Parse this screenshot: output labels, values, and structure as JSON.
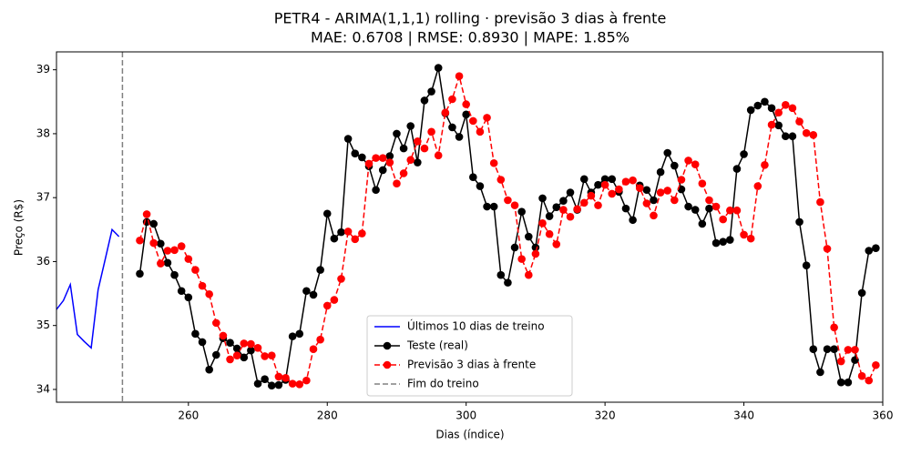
{
  "chart_data": {
    "type": "line",
    "title": "PETR4 - ARIMA(1,1,1) rolling · previsão 3 dias à frente",
    "subtitle": "MAE: 0.6708 | RMSE: 0.8930 | MAPE: 1.85%",
    "x_label": "Dias (índice)",
    "y_label": "Preço (R$)",
    "xlim": [
      241,
      360
    ],
    "ylim": [
      33.8,
      39.28
    ],
    "xticks": [
      260,
      280,
      300,
      320,
      340,
      360
    ],
    "yticks": [
      34,
      35,
      36,
      37,
      38,
      39
    ],
    "grid": false,
    "legend": "lower center",
    "series": [
      {
        "name": "Últimos 10 dias de treino",
        "color": "blue",
        "linestyle": "solid",
        "marker": "none",
        "x": [
          241,
          242,
          243,
          244,
          245,
          246,
          247,
          248,
          249,
          250
        ],
        "values": [
          35.25,
          35.39,
          35.64,
          34.86,
          34.75,
          34.65,
          35.56,
          36.03,
          36.5,
          36.39
        ]
      },
      {
        "name": "Teste (real)",
        "color": "black",
        "linestyle": "solid",
        "marker": "o",
        "x": [
          253,
          254,
          255,
          256,
          257,
          258,
          259,
          260,
          261,
          262,
          263,
          264,
          265,
          266,
          267,
          268,
          269,
          270,
          271,
          272,
          273,
          274,
          275,
          276,
          277,
          278,
          279,
          280,
          281,
          282,
          283,
          284,
          285,
          286,
          287,
          288,
          289,
          290,
          291,
          292,
          293,
          294,
          295,
          296,
          297,
          298,
          299,
          300,
          301,
          302,
          303,
          304,
          305,
          306,
          307,
          308,
          309,
          310,
          311,
          312,
          313,
          314,
          315,
          316,
          317,
          318,
          319,
          320,
          321,
          322,
          323,
          324,
          325,
          326,
          327,
          328,
          329,
          330,
          331,
          332,
          333,
          334,
          335,
          336,
          337,
          338,
          339,
          340,
          341,
          342,
          343,
          344,
          345,
          346,
          347,
          348,
          349,
          350,
          351,
          352,
          353,
          354,
          355,
          356,
          357,
          358,
          359
        ],
        "values": [
          35.81,
          36.62,
          36.59,
          36.28,
          35.98,
          35.79,
          35.54,
          35.44,
          34.87,
          34.74,
          34.31,
          34.54,
          34.8,
          34.73,
          34.64,
          34.5,
          34.61,
          34.09,
          34.16,
          34.06,
          34.07,
          34.15,
          34.83,
          34.87,
          35.54,
          35.48,
          35.87,
          36.75,
          36.36,
          36.46,
          37.92,
          37.69,
          37.63,
          37.49,
          37.12,
          37.43,
          37.65,
          38.0,
          37.77,
          38.12,
          37.55,
          38.52,
          38.66,
          39.03,
          38.32,
          38.1,
          37.95,
          38.3,
          37.32,
          37.18,
          36.86,
          36.86,
          35.79,
          35.67,
          36.22,
          36.78,
          36.39,
          36.22,
          36.99,
          36.71,
          36.85,
          36.95,
          37.08,
          36.81,
          37.29,
          37.08,
          37.2,
          37.29,
          37.29,
          37.09,
          36.83,
          36.65,
          37.19,
          37.12,
          36.96,
          37.4,
          37.7,
          37.5,
          37.13,
          36.86,
          36.81,
          36.59,
          36.83,
          36.29,
          36.31,
          36.34,
          37.45,
          37.68,
          38.37,
          38.44,
          38.5,
          38.4,
          38.13,
          37.96,
          37.96,
          36.62,
          35.94,
          34.63,
          34.27,
          34.63,
          34.63,
          34.11,
          34.11,
          34.46,
          35.51,
          36.17,
          36.21
        ]
      },
      {
        "name": "Previsão 3 dias à frente",
        "color": "red",
        "linestyle": "dashed",
        "marker": "o",
        "x": [
          253,
          254,
          255,
          256,
          257,
          258,
          259,
          260,
          261,
          262,
          263,
          264,
          265,
          266,
          267,
          268,
          269,
          270,
          271,
          272,
          273,
          274,
          275,
          276,
          277,
          278,
          279,
          280,
          281,
          282,
          283,
          284,
          285,
          286,
          287,
          288,
          289,
          290,
          291,
          292,
          293,
          294,
          295,
          296,
          297,
          298,
          299,
          300,
          301,
          302,
          303,
          304,
          305,
          306,
          307,
          308,
          309,
          310,
          311,
          312,
          313,
          314,
          315,
          316,
          317,
          318,
          319,
          320,
          321,
          322,
          323,
          324,
          325,
          326,
          327,
          328,
          329,
          330,
          331,
          332,
          333,
          334,
          335,
          336,
          337,
          338,
          339,
          340,
          341,
          342,
          343,
          344,
          345,
          346,
          347,
          348,
          349,
          350,
          351,
          352,
          353,
          354,
          355,
          356,
          357,
          358,
          359
        ],
        "values": [
          36.33,
          36.74,
          36.29,
          35.97,
          36.17,
          36.18,
          36.24,
          36.04,
          35.87,
          35.62,
          35.49,
          35.04,
          34.84,
          34.47,
          34.53,
          34.72,
          34.71,
          34.65,
          34.52,
          34.53,
          34.2,
          34.18,
          34.09,
          34.08,
          34.14,
          34.63,
          34.78,
          35.31,
          35.4,
          35.73,
          36.47,
          36.35,
          36.44,
          37.53,
          37.62,
          37.62,
          37.55,
          37.22,
          37.38,
          37.59,
          37.88,
          37.77,
          38.03,
          37.66,
          38.33,
          38.54,
          38.9,
          38.46,
          38.2,
          38.03,
          38.25,
          37.54,
          37.28,
          36.96,
          36.88,
          36.04,
          35.79,
          36.12,
          36.6,
          36.43,
          36.27,
          36.81,
          36.7,
          36.82,
          36.92,
          37.03,
          36.88,
          37.2,
          37.06,
          37.13,
          37.25,
          37.27,
          37.15,
          36.91,
          36.72,
          37.08,
          37.11,
          36.96,
          37.28,
          37.58,
          37.52,
          37.22,
          36.96,
          36.86,
          36.66,
          36.8,
          36.8,
          36.42,
          36.36,
          37.18,
          37.51,
          38.14,
          38.33,
          38.45,
          38.4,
          38.19,
          38.01,
          37.98,
          36.93,
          36.2,
          34.97,
          34.44,
          34.62,
          34.62,
          34.21,
          34.14,
          34.38
        ]
      }
    ],
    "vline": {
      "name": "Fim do treino",
      "x": 250.5,
      "color": "gray",
      "linestyle": "dashed"
    }
  }
}
